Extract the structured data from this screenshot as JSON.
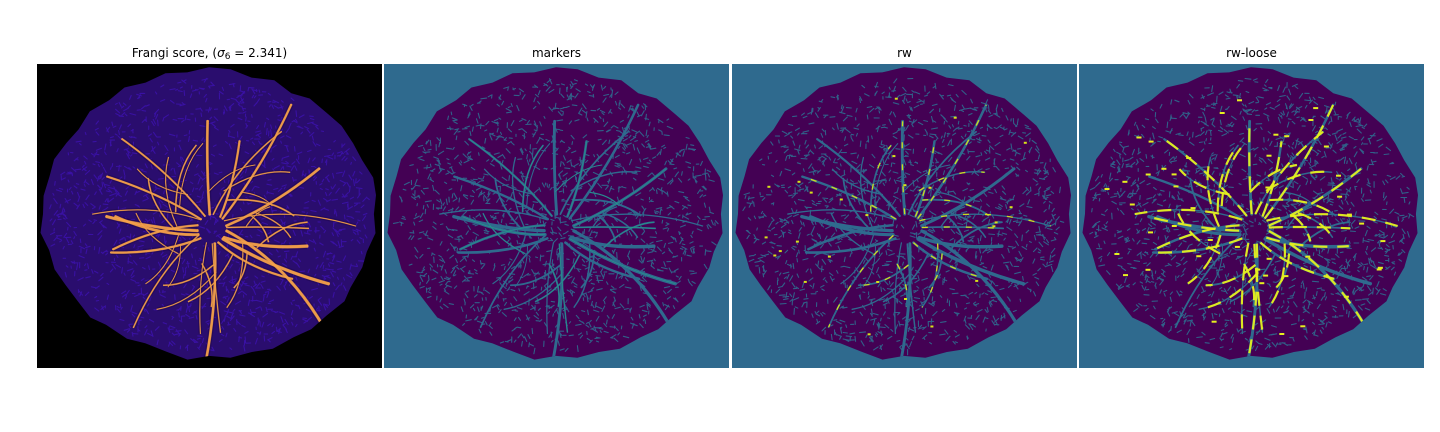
{
  "figure": {
    "panels": [
      {
        "id": "frangi",
        "title_prefix": "Frangi score, (",
        "title_symbol": "σ",
        "title_subscript": "6",
        "title_suffix": " = 2.341)",
        "background_color": "#000000",
        "fundus_color": "#2a0d6e",
        "vessel_color": "#f5a14a",
        "noise_color": "#3b12a8"
      },
      {
        "id": "markers",
        "title": "markers",
        "background_color": "#2f6a8e",
        "fundus_color": "#440154",
        "vessel_color": "#2f6a8e",
        "noise_color": "#2f6a8e",
        "marker_color": "#22a88a"
      },
      {
        "id": "rw",
        "title": "rw",
        "background_color": "#2f6a8e",
        "fundus_color": "#440154",
        "vessel_color": "#2f6a8e",
        "noise_color": "#2f6a8e",
        "highlight_color": "#d8e219"
      },
      {
        "id": "rw-loose",
        "title": "rw-loose",
        "background_color": "#2f6a8e",
        "fundus_color": "#440154",
        "vessel_color": "#2f6a8e",
        "noise_color": "#2f6a8e",
        "highlight_color": "#e6f01f"
      }
    ]
  }
}
